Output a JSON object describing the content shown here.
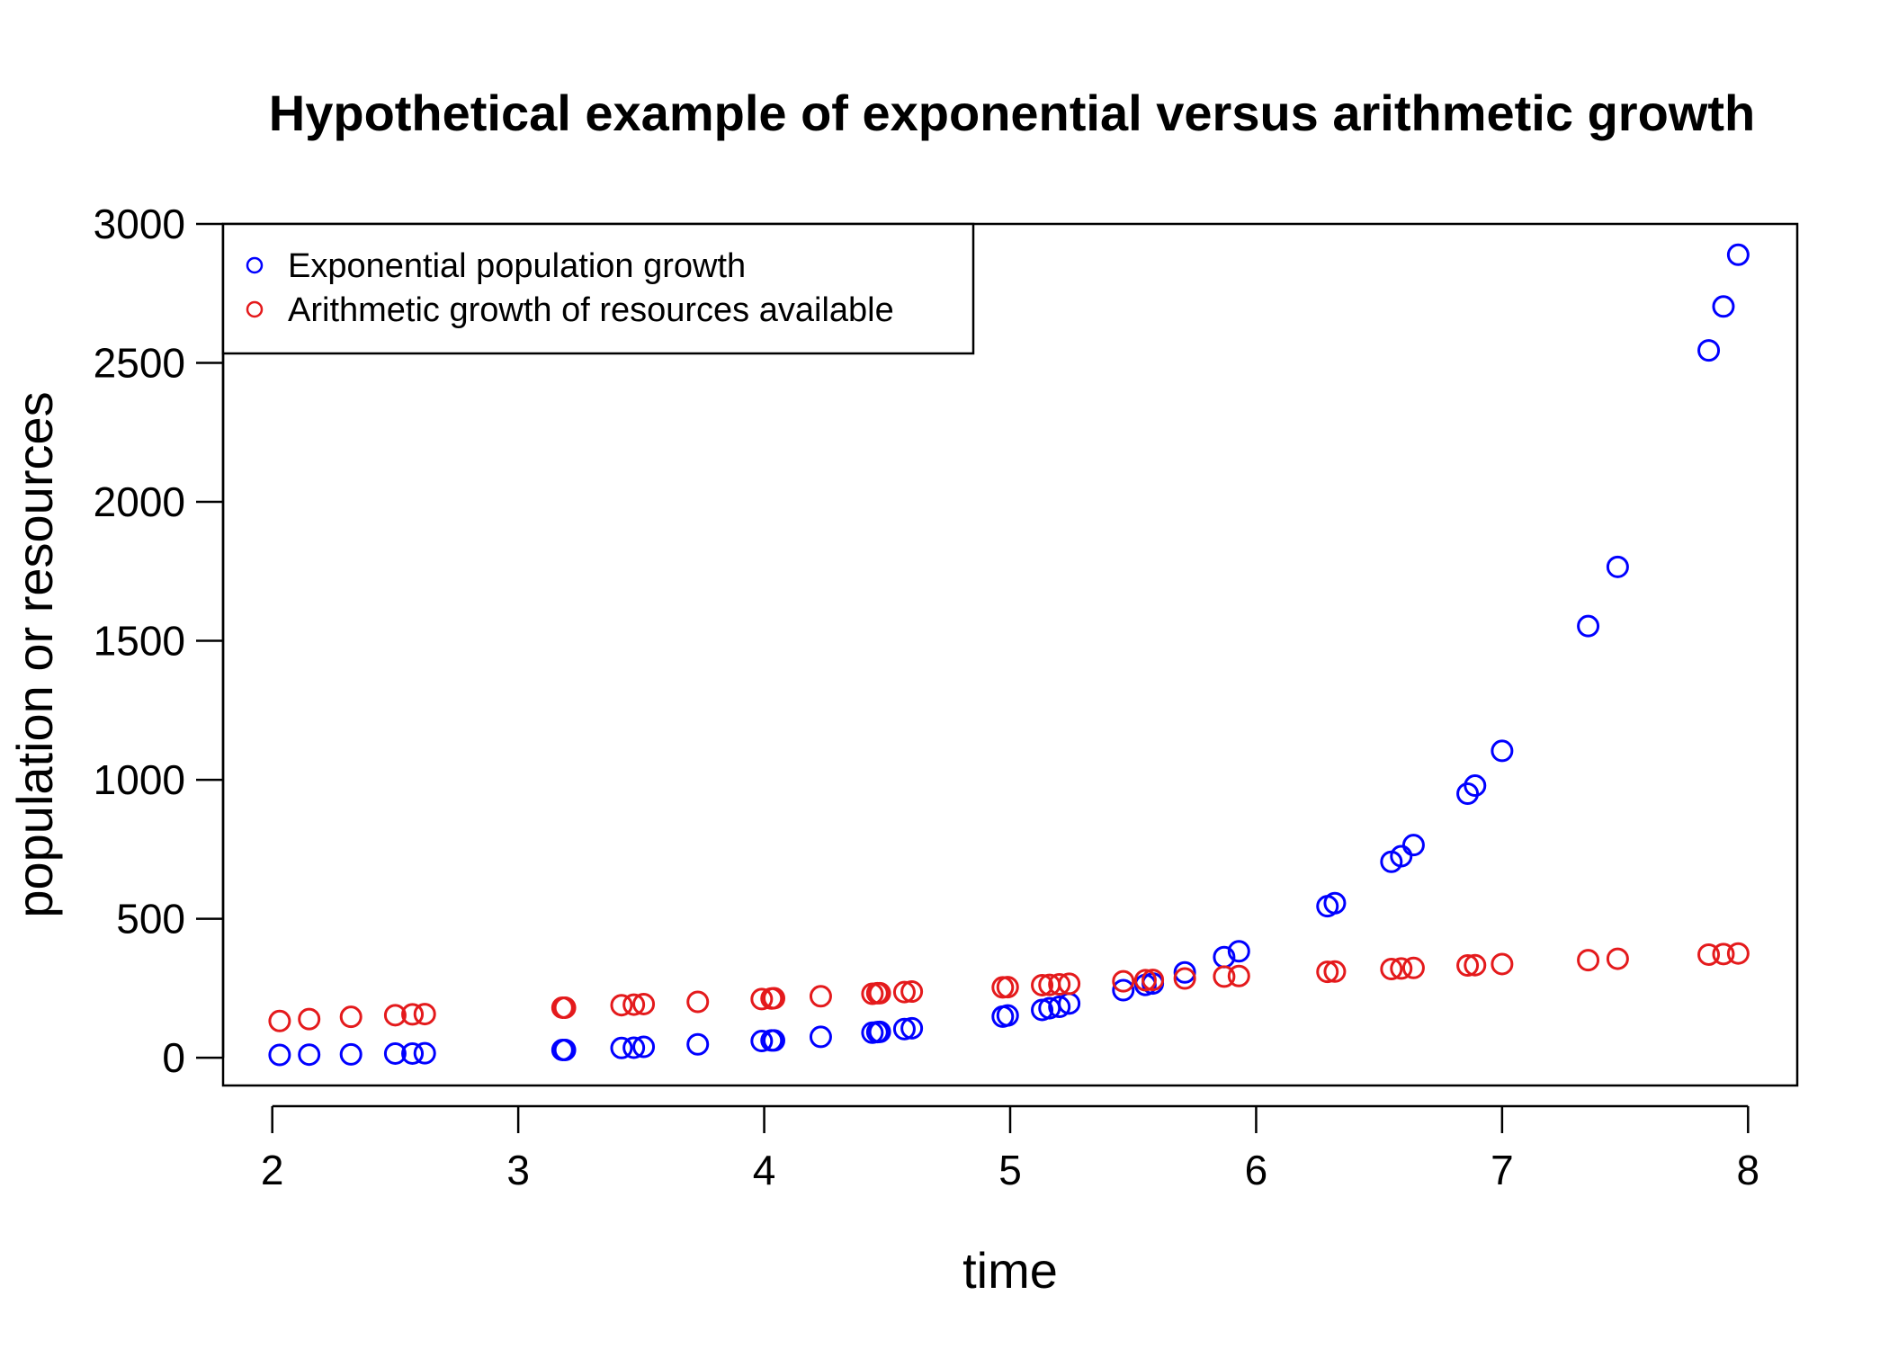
{
  "chart_data": {
    "type": "scatter",
    "title": "Hypothetical example of exponential versus arithmetic growth",
    "xlabel": "time",
    "ylabel": "population or resources",
    "xlim": [
      1.8,
      8.2
    ],
    "ylim": [
      -100,
      3000
    ],
    "xticks": [
      2,
      3,
      4,
      5,
      6,
      7,
      8
    ],
    "yticks": [
      0,
      500,
      1000,
      1500,
      2000,
      2500,
      3000
    ],
    "legend_position": "top-left",
    "series": [
      {
        "name": "Exponential population growth",
        "color": "#0000ff",
        "x": [
          2.03,
          2.15,
          2.32,
          2.5,
          2.57,
          2.62,
          3.18,
          3.19,
          3.42,
          3.47,
          3.51,
          3.73,
          3.99,
          4.03,
          4.04,
          4.23,
          4.44,
          4.46,
          4.47,
          4.57,
          4.6,
          4.97,
          4.99,
          5.13,
          5.16,
          5.2,
          5.24,
          5.46,
          5.55,
          5.58,
          5.71,
          5.87,
          5.93,
          6.29,
          6.32,
          6.55,
          6.59,
          6.64,
          6.86,
          6.89,
          7.0,
          7.35,
          7.47,
          7.84,
          7.9,
          7.96
        ],
        "y": [
          10,
          11,
          12,
          15,
          15,
          16,
          28,
          28,
          35,
          36,
          39,
          48,
          60,
          62,
          62,
          75,
          90,
          92,
          93,
          103,
          106,
          148,
          152,
          172,
          178,
          183,
          195,
          243,
          262,
          267,
          307,
          362,
          383,
          545,
          556,
          705,
          725,
          765,
          950,
          979,
          1104,
          1553,
          1766,
          2545,
          2703,
          2889
        ]
      },
      {
        "name": "Arithmetic growth of resources available",
        "color": "#e41a1c",
        "x": [
          2.03,
          2.15,
          2.32,
          2.5,
          2.57,
          2.62,
          3.18,
          3.19,
          3.42,
          3.47,
          3.51,
          3.73,
          3.99,
          4.03,
          4.04,
          4.23,
          4.44,
          4.46,
          4.47,
          4.57,
          4.6,
          4.97,
          4.99,
          5.13,
          5.16,
          5.2,
          5.24,
          5.46,
          5.55,
          5.58,
          5.71,
          5.87,
          5.93,
          6.29,
          6.32,
          6.55,
          6.59,
          6.64,
          6.86,
          6.89,
          7.0,
          7.35,
          7.47,
          7.84,
          7.9,
          7.96
        ],
        "y": [
          132,
          139,
          147,
          153,
          156,
          157,
          180,
          180,
          189,
          191,
          193,
          201,
          211,
          213,
          214,
          221,
          230,
          232,
          232,
          236,
          238,
          253,
          254,
          261,
          262,
          264,
          266,
          275,
          279,
          280,
          285,
          292,
          294,
          309,
          310,
          319,
          321,
          323,
          332,
          333,
          337,
          351,
          356,
          371,
          373,
          375
        ]
      }
    ]
  }
}
